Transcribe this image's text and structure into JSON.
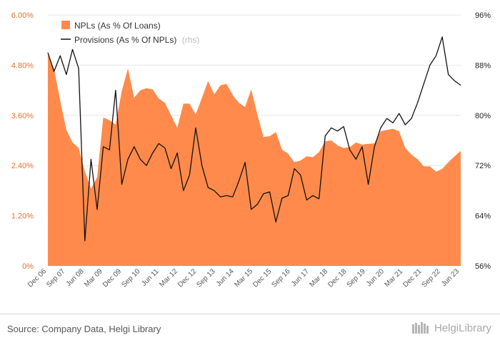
{
  "chart_data": {
    "type": "area",
    "x_labels": [
      "Dec 06",
      "Sep 07",
      "Jun 08",
      "Mar 09",
      "Dec 09",
      "Sep 10",
      "Jun 11",
      "Mar 12",
      "Dec 12",
      "Sep 13",
      "Jun 14",
      "Mar 15",
      "Dec 15",
      "Sep 16",
      "Jun 17",
      "Mar 18",
      "Dec 18",
      "Sep 19",
      "Jun 20",
      "Mar 21",
      "Dec 21",
      "Sep 22",
      "Jun 23"
    ],
    "y_left": {
      "ticks": [
        "0%",
        "1.20%",
        "2.40%",
        "3.60%",
        "4.80%",
        "6.00%"
      ],
      "min": 0,
      "max": 6.0
    },
    "y_right": {
      "ticks": [
        "56%",
        "64%",
        "72%",
        "80%",
        "88%",
        "96%"
      ],
      "min": 56,
      "max": 96
    },
    "legend": {
      "npl": "NPLs (As % Of Loans)",
      "provisions": "Provisions (As % Of NPLs)",
      "provisions_suffix": "(rhs)"
    },
    "colors": {
      "npl": "#ff8a4c",
      "provisions": "#111111",
      "left_axis": "#e8702a"
    },
    "series": [
      {
        "name": "NPLs (As % Of Loans)",
        "axis": "left",
        "values": [
          5.05,
          4.72,
          3.95,
          3.25,
          2.95,
          2.82,
          2.26,
          1.85,
          2.12,
          3.55,
          3.48,
          3.38,
          4.18,
          4.72,
          4.02,
          4.2,
          4.25,
          4.22,
          4.0,
          3.9,
          3.6,
          3.3,
          3.88,
          3.88,
          3.62,
          4.02,
          4.42,
          4.1,
          4.32,
          4.35,
          4.08,
          3.9,
          3.8,
          4.22,
          3.62,
          3.08,
          3.1,
          3.2,
          2.78,
          2.68,
          2.48,
          2.52,
          2.62,
          2.6,
          2.72,
          2.98,
          3.0,
          2.88,
          2.82,
          2.84,
          2.95,
          2.9,
          2.92,
          2.93,
          3.22,
          3.25,
          3.28,
          3.22,
          2.82,
          2.66,
          2.55,
          2.38,
          2.38,
          2.25,
          2.32,
          2.48,
          2.62,
          2.75
        ]
      },
      {
        "name": "Provisions (As % Of NPLs)",
        "axis": "right",
        "values": [
          90,
          87,
          89.5,
          86.5,
          90.5,
          87.5,
          60,
          73,
          65,
          75,
          74.5,
          84,
          69,
          73,
          75,
          73,
          72,
          74,
          75.5,
          74.8,
          71.5,
          74,
          68,
          70.5,
          78,
          72,
          68.5,
          68,
          67,
          67.2,
          67,
          69.5,
          72.5,
          65,
          65.8,
          67.5,
          67.8,
          63,
          66.8,
          67.2,
          71.5,
          70.5,
          66.5,
          67.2,
          66.7,
          76.7,
          78,
          77.5,
          78.2,
          74.5,
          73,
          75,
          69,
          75,
          78,
          79.5,
          78.8,
          80.3,
          78.5,
          79.5,
          82,
          85,
          88,
          89.5,
          92.5,
          86.5,
          85.5,
          84.8
        ]
      }
    ],
    "grid": "horizontal"
  },
  "footer": {
    "source": "Source: Company Data, Helgi Library",
    "brand": "HelgiLibrary",
    "brand_icon": "bookshelf-logo-icon"
  }
}
